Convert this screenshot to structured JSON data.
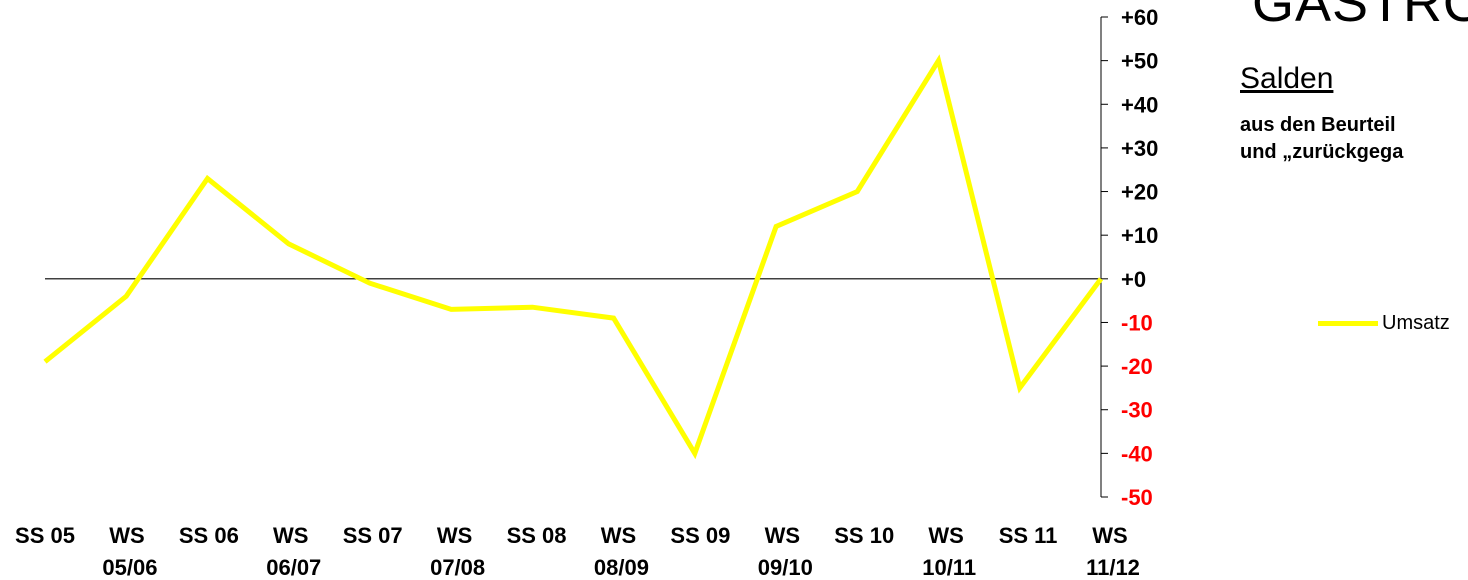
{
  "panel": {
    "title_fragment": "GASTRO",
    "subtitle": "Salden",
    "description_line1": "aus den Beurteil",
    "description_line2": "und „zurückgega"
  },
  "chart_data": {
    "type": "line",
    "categories": [
      [
        "SS 05",
        ""
      ],
      [
        "WS",
        "05/06"
      ],
      [
        "SS 06",
        ""
      ],
      [
        "WS",
        "06/07"
      ],
      [
        "SS 07",
        ""
      ],
      [
        "WS",
        "07/08"
      ],
      [
        "SS 08",
        ""
      ],
      [
        "WS",
        "08/09"
      ],
      [
        "SS 09",
        ""
      ],
      [
        "WS",
        "09/10"
      ],
      [
        "SS 10",
        ""
      ],
      [
        "WS",
        "10/11"
      ],
      [
        "SS 11",
        ""
      ],
      [
        "WS",
        "11/12"
      ]
    ],
    "series": [
      {
        "name": "Umsatz",
        "color": "#ffff00",
        "values": [
          -19,
          -4,
          23,
          8,
          -1,
          -7,
          -6.5,
          -9,
          -40,
          12,
          20,
          50,
          -25,
          0
        ]
      }
    ],
    "ylim": [
      -50,
      60
    ],
    "yticks": [
      "+60",
      "+50",
      "+40",
      "+30",
      "+20",
      "+10",
      "+0",
      "-10",
      "-20",
      "-30",
      "-40",
      "-50"
    ],
    "negative_tick_color": "#ff0000",
    "positive_tick_color": "#000000",
    "legend_position": "right",
    "zero_line": true,
    "grid": false
  }
}
